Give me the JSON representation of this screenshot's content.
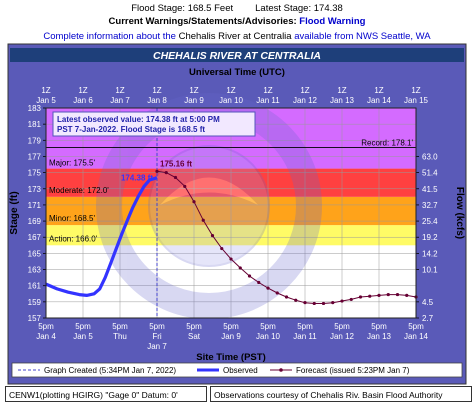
{
  "header": {
    "flood_stage": "Flood Stage: 168.5 Feet",
    "latest_stage": "Latest Stage: 174.38",
    "warnings_label": "Current Warnings/Statements/Advisories:",
    "warning_value": "Flood Warning",
    "info_prefix": "Complete information about the",
    "info_link": "Chehalis River at Centralia",
    "info_mid": "available from",
    "info_source": "NWS Seattle, WA"
  },
  "chart_data": {
    "type": "line",
    "title": "CHEHALIS RIVER AT CENTRALIA",
    "top_axis_title": "Universal Time (UTC)",
    "xlabel": "Site Time (PST)",
    "ylabel": "Stage (ft)",
    "y2label": "Flow (kcfs)",
    "ylim": [
      157,
      183
    ],
    "xlim_days": [
      0,
      10
    ],
    "x_ticks": [
      {
        "day": 0,
        "top1": "1Z",
        "top2": "Jan 5",
        "bot1": "5pm",
        "bot2": "Jan 4"
      },
      {
        "day": 1,
        "top1": "1Z",
        "top2": "Jan 6",
        "bot1": "5pm",
        "bot2": "Jan 5"
      },
      {
        "day": 2,
        "top1": "1Z",
        "top2": "Jan 7",
        "bot1": "5pm",
        "bot2": "Thu"
      },
      {
        "day": 3,
        "top1": "1Z",
        "top2": "Jan 8",
        "bot1": "5pm",
        "bot2": "Fri"
      },
      {
        "day": 4,
        "top1": "1Z",
        "top2": "Jan 9",
        "bot1": "5pm",
        "bot2": "Sat"
      },
      {
        "day": 5,
        "top1": "1Z",
        "top2": "Jan 10",
        "bot1": "5pm",
        "bot2": "Jan 9"
      },
      {
        "day": 6,
        "top1": "1Z",
        "top2": "Jan 11",
        "bot1": "5pm",
        "bot2": "Jan 10"
      },
      {
        "day": 7,
        "top1": "1Z",
        "top2": "Jan 12",
        "bot1": "5pm",
        "bot2": "Jan 11"
      },
      {
        "day": 8,
        "top1": "1Z",
        "top2": "Jan 13",
        "bot1": "5pm",
        "bot2": "Jan 12"
      },
      {
        "day": 9,
        "top1": "1Z",
        "top2": "Jan 14",
        "bot1": "5pm",
        "bot2": "Jan 13"
      },
      {
        "day": 10,
        "top1": "1Z",
        "top2": "Jan 15",
        "bot1": "5pm",
        "bot2": "Jan 14"
      }
    ],
    "x_tick_extra": {
      "day": 3,
      "bot2": "Jan 7"
    },
    "y_ticks": [
      157,
      159,
      161,
      163,
      165,
      167,
      169,
      171,
      173,
      175,
      177,
      179,
      181,
      183
    ],
    "y2_ticks": [
      {
        "stage": 157,
        "label": "2.7"
      },
      {
        "stage": 159,
        "label": "4.5"
      },
      {
        "stage": 163,
        "label": "10.1"
      },
      {
        "stage": 165,
        "label": "14.2"
      },
      {
        "stage": 167,
        "label": "19.2"
      },
      {
        "stage": 169,
        "label": "25.4"
      },
      {
        "stage": 171,
        "label": "32.7"
      },
      {
        "stage": 173,
        "label": "41.5"
      },
      {
        "stage": 175,
        "label": "51.4"
      },
      {
        "stage": 177,
        "label": "63.0"
      }
    ],
    "bands": [
      {
        "name": "Action",
        "from": 166,
        "to": 168.5,
        "color": "#fffb66",
        "label": "Action: 166.0'"
      },
      {
        "name": "Minor",
        "from": 168.5,
        "to": 172,
        "color": "#ffa31a",
        "label": "Minor: 168.5'"
      },
      {
        "name": "Moderate",
        "from": 172,
        "to": 175.5,
        "color": "#ff4040",
        "label": "Moderate: 172.0'"
      },
      {
        "name": "Major",
        "from": 175.5,
        "to": 183,
        "color": "#d46bff",
        "label": "Major: 175.5'"
      }
    ],
    "record": {
      "value": 178.1,
      "label": "Record: 178.1'"
    },
    "latest_box": {
      "line1": "Latest observed value: 174.38 ft at 5:00 PM",
      "line2": "PST 7-Jan-2022. Flood Stage is 168.5 ft"
    },
    "graph_created_day": 3.0,
    "observed_label": "174.38 ft",
    "forecast_label": "175.16 ft",
    "series": [
      {
        "name": "Observed",
        "color": "#3333ff",
        "x": [
          0,
          0.3,
          0.6,
          0.9,
          1.1,
          1.3,
          1.45,
          1.6,
          1.75,
          1.9,
          2.05,
          2.2,
          2.35,
          2.5,
          2.65,
          2.8,
          2.95,
          3.0
        ],
        "y": [
          161.2,
          160.6,
          160.2,
          159.9,
          159.8,
          160.0,
          160.6,
          162.0,
          163.8,
          165.6,
          167.4,
          169.1,
          170.7,
          172.1,
          173.3,
          174.1,
          174.3,
          174.38
        ]
      },
      {
        "name": "Forecast (issued 5:23PM Jan 7)",
        "color": "#660033",
        "x": [
          3.0,
          3.25,
          3.5,
          3.75,
          4.0,
          4.25,
          4.5,
          4.75,
          5.0,
          5.25,
          5.5,
          5.75,
          6.0,
          6.25,
          6.5,
          6.75,
          7.0,
          7.25,
          7.5,
          7.75,
          8.0,
          8.25,
          8.5,
          8.75,
          9.0,
          9.25,
          9.5,
          9.75,
          10.0
        ],
        "y": [
          175.16,
          175.0,
          174.4,
          173.3,
          171.4,
          169.1,
          167.2,
          165.6,
          164.3,
          163.2,
          162.2,
          161.4,
          160.7,
          160.1,
          159.6,
          159.2,
          158.9,
          158.8,
          158.8,
          158.9,
          159.1,
          159.3,
          159.6,
          159.7,
          159.8,
          159.9,
          159.9,
          159.8,
          159.6
        ]
      }
    ],
    "legend": {
      "created": "Graph Created (5:34PM Jan 7, 2022)",
      "observed": "Observed",
      "forecast": "Forecast (issued 5:23PM Jan 7)"
    },
    "colors": {
      "frame": "#5555bb",
      "title_bar": "#224488",
      "observed": "#3333ff",
      "forecast": "#660033"
    }
  },
  "footer": {
    "left": "CENW1(plotting HGIRG) \"Gage 0\" Datum: 0'",
    "right": "Observations courtesy of Chehalis Riv. Basin Flood Authority"
  }
}
